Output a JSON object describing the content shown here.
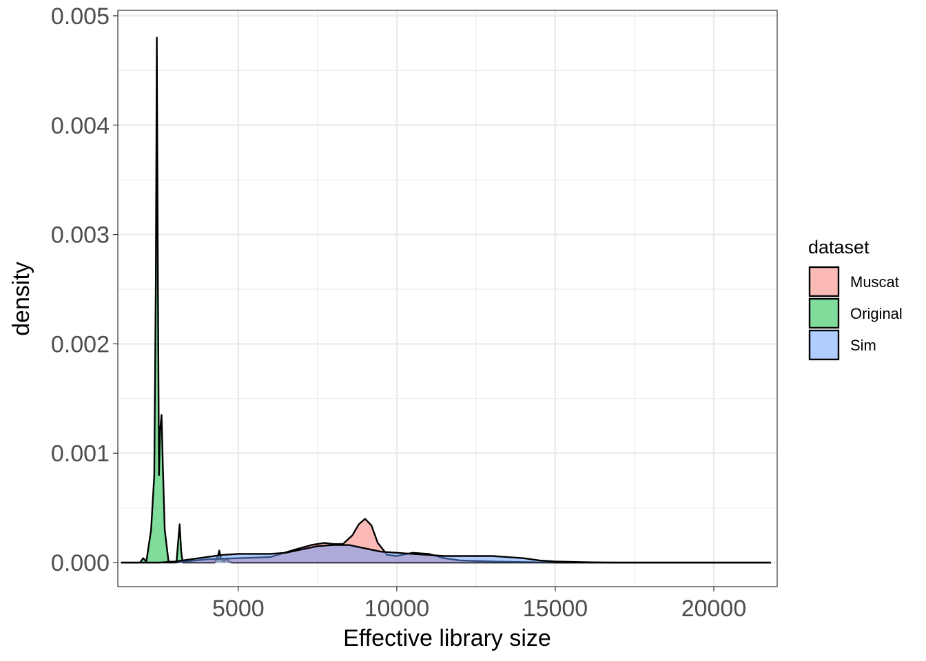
{
  "chart_data": {
    "type": "area",
    "subtype": "density",
    "xlabel": "Effective library size",
    "ylabel": "density",
    "xlim": [
      1200,
      22000
    ],
    "ylim": [
      -0.00022,
      0.00505
    ],
    "x_ticks": [
      5000,
      10000,
      15000,
      20000
    ],
    "x_tick_labels": [
      "5000",
      "10000",
      "15000",
      "20000"
    ],
    "y_ticks": [
      0.0,
      0.001,
      0.002,
      0.003,
      0.004,
      0.005
    ],
    "y_tick_labels": [
      "0.000",
      "0.001",
      "0.002",
      "0.003",
      "0.004",
      "0.005"
    ],
    "grid": true,
    "legend": {
      "title": "dataset",
      "position": "right",
      "entries": [
        "Muscat",
        "Original",
        "Sim"
      ]
    },
    "colors": {
      "Muscat": "#F8766D",
      "Original": "#00BA38",
      "Sim": "#619CFF"
    },
    "series": [
      {
        "name": "Original",
        "x": [
          1300,
          1900,
          2000,
          2100,
          2250,
          2350,
          2400,
          2430,
          2460,
          2500,
          2530,
          2580,
          2620,
          2680,
          2800,
          3050,
          3150,
          3200,
          3250,
          3350,
          3700,
          4250,
          4350,
          4400,
          4450,
          4550,
          4650,
          4700,
          4800,
          5000,
          21800
        ],
        "y": [
          0,
          0,
          4e-05,
          1e-05,
          0.0003,
          0.0008,
          0.0026,
          0.0048,
          0.0028,
          0.0008,
          0.0012,
          0.00135,
          0.0009,
          0.0003,
          1e-05,
          0,
          0.00035,
          0.0001,
          0,
          0,
          0,
          0,
          5e-05,
          0.00011,
          4e-05,
          1e-05,
          4e-05,
          1e-05,
          0,
          0,
          0
        ]
      },
      {
        "name": "Muscat",
        "x": [
          1300,
          3000,
          4000,
          5000,
          6000,
          6800,
          7300,
          7700,
          8000,
          8300,
          8600,
          8800,
          9000,
          9200,
          9400,
          9700,
          10000,
          10500,
          11000,
          11500,
          12000,
          13000,
          14000,
          15000,
          21800
        ],
        "y": [
          0,
          0,
          3e-05,
          4e-05,
          5e-05,
          0.00012,
          0.00016,
          0.00018,
          0.00017,
          0.00017,
          0.00025,
          0.00035,
          0.0004,
          0.00034,
          0.00018,
          7e-05,
          6e-05,
          9e-05,
          8e-05,
          4e-05,
          2e-05,
          1e-05,
          5e-06,
          0,
          0
        ]
      },
      {
        "name": "Sim",
        "x": [
          1300,
          2500,
          3000,
          3500,
          4000,
          4500,
          5000,
          5500,
          6000,
          6500,
          7000,
          7500,
          8000,
          8500,
          9000,
          9500,
          10000,
          10500,
          11000,
          11500,
          12000,
          12500,
          13000,
          13500,
          14000,
          14500,
          15000,
          16000,
          17000,
          21800
        ],
        "y": [
          0,
          0,
          1e-05,
          3e-05,
          5e-05,
          7e-05,
          8e-05,
          8e-05,
          8e-05,
          9e-05,
          0.00012,
          0.00015,
          0.00016,
          0.00016,
          0.00013,
          0.0001,
          9e-05,
          8e-05,
          7e-05,
          6e-05,
          6e-05,
          6e-05,
          6e-05,
          5e-05,
          4e-05,
          2e-05,
          1e-05,
          3e-06,
          0,
          0
        ]
      }
    ]
  }
}
